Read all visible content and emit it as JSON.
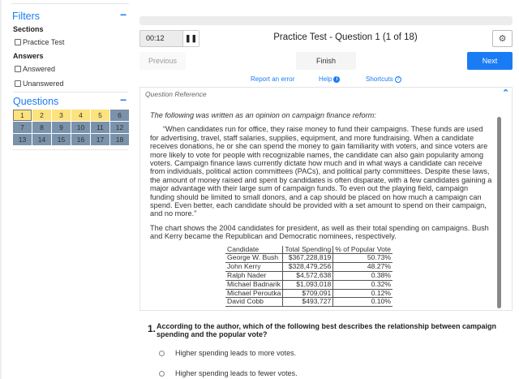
{
  "sidebar": {
    "filters_title": "Filters",
    "sections_label": "Sections",
    "sections": [
      "Practice Test"
    ],
    "answers_label": "Answers",
    "answers": [
      "Answered",
      "Unanswered"
    ],
    "questions_title": "Questions",
    "questions": [
      {
        "n": "1",
        "state": "current"
      },
      {
        "n": "2",
        "state": "answered"
      },
      {
        "n": "3",
        "state": "answered"
      },
      {
        "n": "4",
        "state": "answered"
      },
      {
        "n": "5",
        "state": "answered"
      },
      {
        "n": "6",
        "state": "unanswered"
      },
      {
        "n": "7",
        "state": "unanswered"
      },
      {
        "n": "8",
        "state": "unanswered"
      },
      {
        "n": "9",
        "state": "unanswered"
      },
      {
        "n": "10",
        "state": "unanswered"
      },
      {
        "n": "11",
        "state": "unanswered"
      },
      {
        "n": "12",
        "state": "unanswered"
      },
      {
        "n": "13",
        "state": "unanswered"
      },
      {
        "n": "14",
        "state": "unanswered"
      },
      {
        "n": "15",
        "state": "unanswered"
      },
      {
        "n": "16",
        "state": "unanswered"
      },
      {
        "n": "17",
        "state": "unanswered"
      },
      {
        "n": "18",
        "state": "unanswered"
      }
    ]
  },
  "header": {
    "timer": "00:12",
    "title": "Practice Test - Question 1 (1 of 18)"
  },
  "nav": {
    "previous": "Previous",
    "finish": "Finish",
    "next": "Next",
    "next_color": "#1a7cf5"
  },
  "links": {
    "report": "Report an error",
    "help": "Help",
    "shortcuts": "Shortcuts"
  },
  "reference": {
    "title": "Question Reference",
    "intro": "The following was written as an opinion on campaign finance reform:",
    "quote": "“When candidates run for office, they raise money to fund their campaigns. These funds are used for advertising, travel, staff salaries, supplies, equipment, and more fundraising. When a candidate receives donations, he or she can spend the money to gain familiarity with voters, and since voters are more likely to vote for people with recognizable names, the candidate can also gain popularity among voters. Campaign finance laws currently dictate how much and in what ways a candidate can receive from individuals, political action committees (PACs), and political party committees. Despite these laws, the amount of money raised and spent by candidates is often disparate, with a few candidates gaining a major advantage with their large sum of campaign funds. To even out the playing field, campaign funding should be limited to small donors, and a cap should be placed on how much a campaign can spend. Even better, each candidate should be provided with a set amount to spend on their campaign, and no more.”",
    "chart_intro": "The chart shows the 2004 candidates for president, as well as their total spending on campaigns. Bush and Kerry became the Republican and Democratic nominees, respectively.",
    "table": {
      "headers": [
        "Candidate",
        "Total Spending",
        "% of Popular Vote"
      ],
      "rows": [
        [
          "George W. Bush",
          "$367,228,819",
          "50.73%"
        ],
        [
          "John Kerry",
          "$328,479,256",
          "48.27%"
        ],
        [
          "Ralph Nader",
          "$4,572,638",
          "0.38%"
        ],
        [
          "Michael Badnarik",
          "$1,093,018",
          "0.32%"
        ],
        [
          "Michael Peroutka",
          "$709,091",
          "0.12%"
        ],
        [
          "David Cobb",
          "$493,727",
          "0.10%"
        ]
      ]
    }
  },
  "question": {
    "number": "1.",
    "text": "According to the author, which of the following best describes the relationship between campaign spending and the popular vote?",
    "options": [
      "Higher spending leads to more votes.",
      "Higher spending leads to fewer votes."
    ]
  }
}
